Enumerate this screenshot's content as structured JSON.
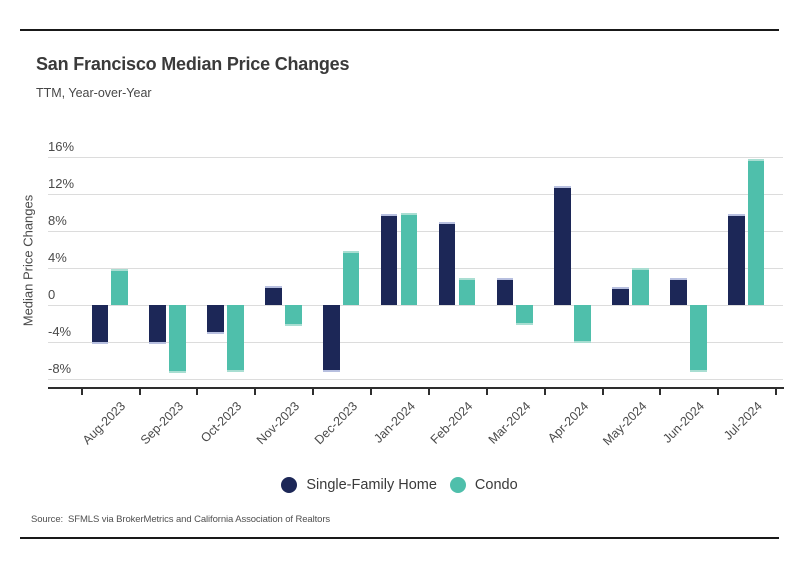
{
  "header": {
    "title": "San Francisco Median Price Changes",
    "subtitle": "TTM, Year-over-Year"
  },
  "chart_data": {
    "type": "bar",
    "title": "San Francisco Median Price Changes",
    "subtitle": "TTM, Year-over-Year",
    "categories": [
      "Aug-2023",
      "Sep-2023",
      "Oct-2023",
      "Nov-2023",
      "Dec-2023",
      "Jan-2024",
      "Feb-2024",
      "Mar-2024",
      "Apr-2024",
      "May-2024",
      "Jun-2024",
      "Jul-2024"
    ],
    "series": [
      {
        "name": "Single-Family Home",
        "color": "#1c2757",
        "cap_color": "#b7bfdf",
        "values": [
          -4.2,
          -4.2,
          -3.1,
          2.1,
          -7.2,
          9.9,
          9.0,
          3.0,
          12.9,
          2.0,
          3.0,
          9.9
        ]
      },
      {
        "name": "Condo",
        "color": "#4fbfab",
        "cap_color": "#a9ded2",
        "values": [
          3.9,
          -7.3,
          -7.2,
          -2.2,
          5.9,
          10.0,
          3.0,
          -2.1,
          -4.1,
          4.0,
          -7.2,
          15.9
        ]
      }
    ],
    "xlabel": "",
    "ylabel": "Median Price Changes",
    "yticks": [
      {
        "value": 16,
        "label": "16%"
      },
      {
        "value": 12,
        "label": "12%"
      },
      {
        "value": 8,
        "label": "8%"
      },
      {
        "value": 4,
        "label": "4%"
      },
      {
        "value": 0,
        "label": "0"
      },
      {
        "value": -4,
        "label": "-4%"
      },
      {
        "value": -8,
        "label": "-8%"
      }
    ],
    "ylim": [
      -8.8,
      17.9
    ],
    "grid": true,
    "legend_position": "bottom",
    "x_tick_rotation": 45,
    "colors": {
      "gridline": "#dcdcdc",
      "axis": "#2e2e2e",
      "border_rule": "#191919"
    }
  },
  "source": {
    "label": "Source:",
    "text": "SFMLS via BrokerMetrics and California Association of Realtors"
  }
}
